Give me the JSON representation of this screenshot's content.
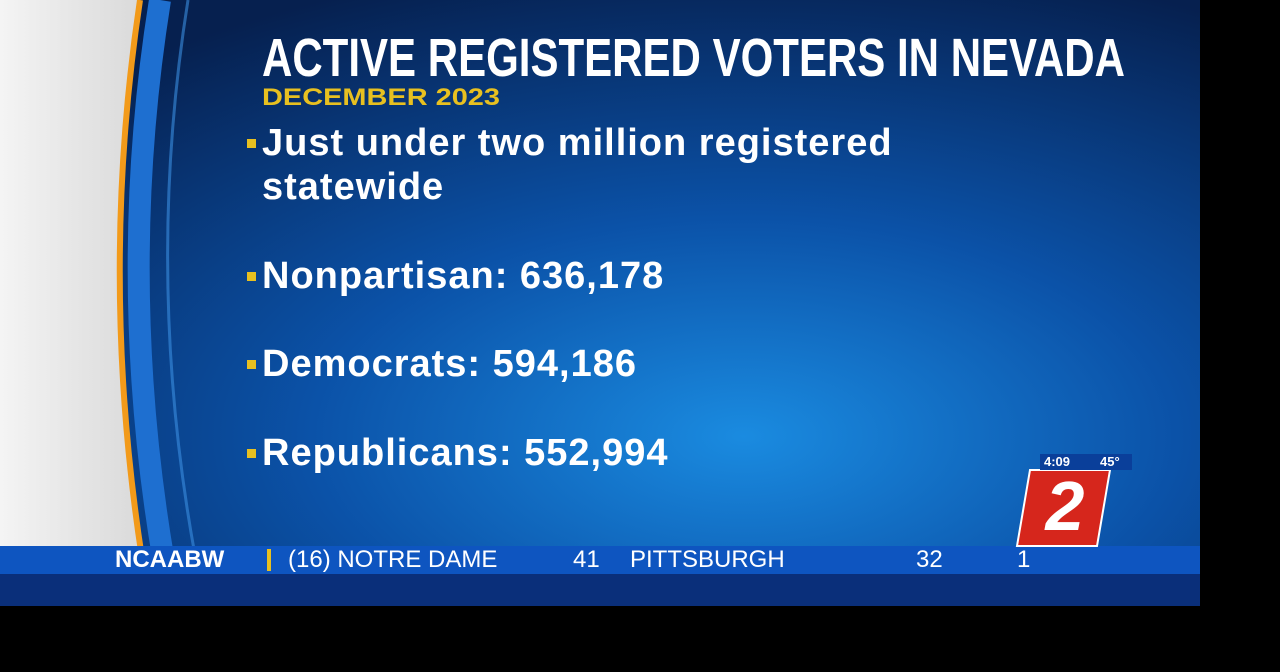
{
  "header": {
    "title": "ACTIVE REGISTERED VOTERS IN NEVADA",
    "subtitle": "DECEMBER 2023"
  },
  "bullets": [
    "Just under two million registered statewide",
    "Nonpartisan: 636,178",
    "Democrats: 594,186",
    "Republicans: 552,994"
  ],
  "ticker": {
    "league": "NCAABW",
    "team1": "(16) NOTRE DAME",
    "score1": "41",
    "team2": "PITTSBURGH",
    "score2": "32",
    "period": "1"
  },
  "station": {
    "time": "4:09",
    "temperature": "45°",
    "logo": "2"
  }
}
